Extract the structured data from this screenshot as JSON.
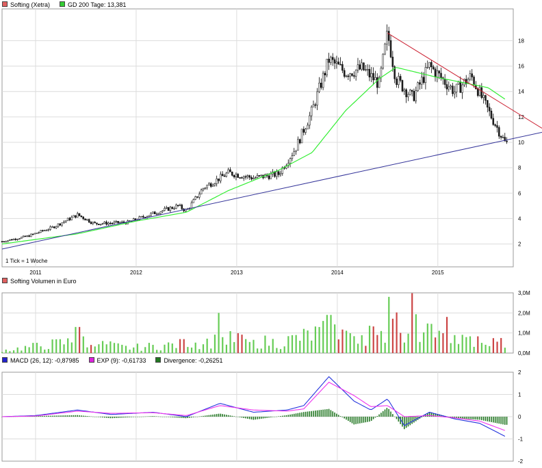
{
  "legend_price": [
    {
      "label": "Softing (Xetra)",
      "color": "#e06060"
    },
    {
      "label": "GD 200 Tage: 13,381",
      "color": "#33cc33"
    }
  ],
  "legend_volume": [
    {
      "label": "Softing Volumen in Euro",
      "color": "#e06060"
    }
  ],
  "legend_macd": [
    {
      "label": "MACD (26, 12): -0,87985",
      "color": "#2222cc"
    },
    {
      "label": "EXP (9): -0,61733",
      "color": "#dd22dd"
    },
    {
      "label": "Divergence: -0,26251",
      "color": "#227722"
    }
  ],
  "tick_note": "1 Tick = 1 Woche",
  "colors": {
    "up": "#ffffff",
    "down": "#222222",
    "ma": "#33ee33",
    "vol_up": "#66cc55",
    "vol_down": "#cc4444",
    "macd": "#2233dd",
    "signal": "#ee33ee",
    "div": "#227722",
    "trend_up": "#333399",
    "trend_down": "#cc2233"
  },
  "chart_data": [
    {
      "type": "candlestick",
      "title": "Softing (Xetra)",
      "x_ticks": [
        "2011",
        "2012",
        "2013",
        "2014",
        "2015"
      ],
      "y_ticks": [
        "2",
        "4",
        "6",
        "8",
        "10",
        "12",
        "14",
        "16",
        "18"
      ],
      "ylim": [
        0.2,
        20.5
      ],
      "xlim": [
        "2010-09",
        "2015-10"
      ],
      "price_path": [
        [
          "2010-09",
          2.2
        ],
        [
          "2010-12",
          2.6
        ],
        [
          "2011-03",
          3.3
        ],
        [
          "2011-06",
          4.3
        ],
        [
          "2011-08",
          3.6
        ],
        [
          "2011-12",
          3.7
        ],
        [
          "2012-03",
          4.4
        ],
        [
          "2012-06",
          5.0
        ],
        [
          "2012-07",
          4.6
        ],
        [
          "2012-09",
          6.4
        ],
        [
          "2012-12",
          7.6
        ],
        [
          "2013-03",
          7.2
        ],
        [
          "2013-06",
          7.5
        ],
        [
          "2013-08",
          9.5
        ],
        [
          "2013-10",
          12.5
        ],
        [
          "2013-12",
          16.5
        ],
        [
          "2014-02",
          15.5
        ],
        [
          "2014-04",
          15.8
        ],
        [
          "2014-06",
          14.6
        ],
        [
          "2014-07",
          18.6
        ],
        [
          "2014-08",
          15.0
        ],
        [
          "2014-10",
          13.5
        ],
        [
          "2014-12",
          16.0
        ],
        [
          "2015-03",
          14.0
        ],
        [
          "2015-05",
          15.2
        ],
        [
          "2015-07",
          12.5
        ],
        [
          "2015-09",
          10.0
        ]
      ],
      "ma200": {
        "name": "GD 200 Tage",
        "path": [
          [
            "2010-09",
            2.0
          ],
          [
            "2011-06",
            2.8
          ],
          [
            "2012-01",
            3.8
          ],
          [
            "2012-07",
            4.5
          ],
          [
            "2012-12",
            6.2
          ],
          [
            "2013-06",
            7.8
          ],
          [
            "2013-10",
            9.2
          ],
          [
            "2014-02",
            12.5
          ],
          [
            "2014-06",
            15.0
          ],
          [
            "2014-08",
            15.9
          ],
          [
            "2015-01",
            15.1
          ],
          [
            "2015-07",
            14.3
          ],
          [
            "2015-09",
            13.4
          ]
        ]
      },
      "trendlines": [
        {
          "color": "up",
          "from": [
            "2010-09",
            1.6
          ],
          "to": [
            "2015-10",
            10.3
          ]
        },
        {
          "color": "down",
          "from": [
            "2014-07",
            18.6
          ],
          "to": [
            "2015-10",
            12.5
          ]
        }
      ]
    },
    {
      "type": "bar",
      "title": "Softing Volumen in Euro",
      "y_ticks": [
        "0,0M",
        "1,0M",
        "2,0M",
        "3,0M"
      ],
      "ylim": [
        0,
        3
      ],
      "volume_profile": [
        [
          "2010-09",
          0.15
        ],
        [
          "2011-06",
          0.7
        ],
        [
          "2011-12",
          0.3
        ],
        [
          "2012-06",
          0.5
        ],
        [
          "2012-12",
          0.8
        ],
        [
          "2013-06",
          0.6
        ],
        [
          "2013-12",
          1.3
        ],
        [
          "2014-06",
          1.1
        ],
        [
          "2014-09",
          1.7
        ],
        [
          "2015-01",
          0.9
        ],
        [
          "2015-09",
          0.6
        ]
      ],
      "spikes": [
        [
          "2011-06",
          1.3
        ],
        [
          "2012-11",
          2.0
        ],
        [
          "2013-12",
          1.9
        ],
        [
          "2014-07",
          2.8
        ],
        [
          "2014-10",
          3.0
        ],
        [
          "2015-02",
          1.8
        ]
      ]
    },
    {
      "type": "line",
      "title": "MACD (26, 12)",
      "y_ticks": [
        "-2",
        "-1",
        "0",
        "1",
        "2"
      ],
      "ylim": [
        -2,
        2
      ],
      "series": [
        {
          "name": "MACD (26, 12)",
          "path": [
            [
              "2010-09",
              0.0
            ],
            [
              "2011-01",
              0.05
            ],
            [
              "2011-06",
              0.3
            ],
            [
              "2011-10",
              0.1
            ],
            [
              "2012-03",
              0.2
            ],
            [
              "2012-07",
              0.0
            ],
            [
              "2012-11",
              0.6
            ],
            [
              "2013-03",
              0.2
            ],
            [
              "2013-07",
              0.3
            ],
            [
              "2013-09",
              0.5
            ],
            [
              "2013-12",
              1.8
            ],
            [
              "2014-03",
              0.7
            ],
            [
              "2014-05",
              0.3
            ],
            [
              "2014-07",
              0.8
            ],
            [
              "2014-09",
              -0.4
            ],
            [
              "2014-12",
              0.2
            ],
            [
              "2015-03",
              -0.1
            ],
            [
              "2015-06",
              -0.3
            ],
            [
              "2015-09",
              -0.88
            ]
          ]
        },
        {
          "name": "EXP (9)",
          "path": [
            [
              "2010-09",
              0.0
            ],
            [
              "2011-01",
              0.03
            ],
            [
              "2011-06",
              0.25
            ],
            [
              "2011-10",
              0.15
            ],
            [
              "2012-03",
              0.18
            ],
            [
              "2012-07",
              0.05
            ],
            [
              "2012-11",
              0.5
            ],
            [
              "2013-03",
              0.3
            ],
            [
              "2013-07",
              0.25
            ],
            [
              "2013-09",
              0.35
            ],
            [
              "2013-12",
              1.55
            ],
            [
              "2014-03",
              0.95
            ],
            [
              "2014-05",
              0.45
            ],
            [
              "2014-07",
              0.5
            ],
            [
              "2014-09",
              0.0
            ],
            [
              "2014-12",
              0.05
            ],
            [
              "2015-03",
              -0.05
            ],
            [
              "2015-06",
              -0.2
            ],
            [
              "2015-09",
              -0.62
            ]
          ]
        },
        {
          "name": "Divergence",
          "type": "bar",
          "note": "MACD minus EXP"
        }
      ]
    }
  ]
}
